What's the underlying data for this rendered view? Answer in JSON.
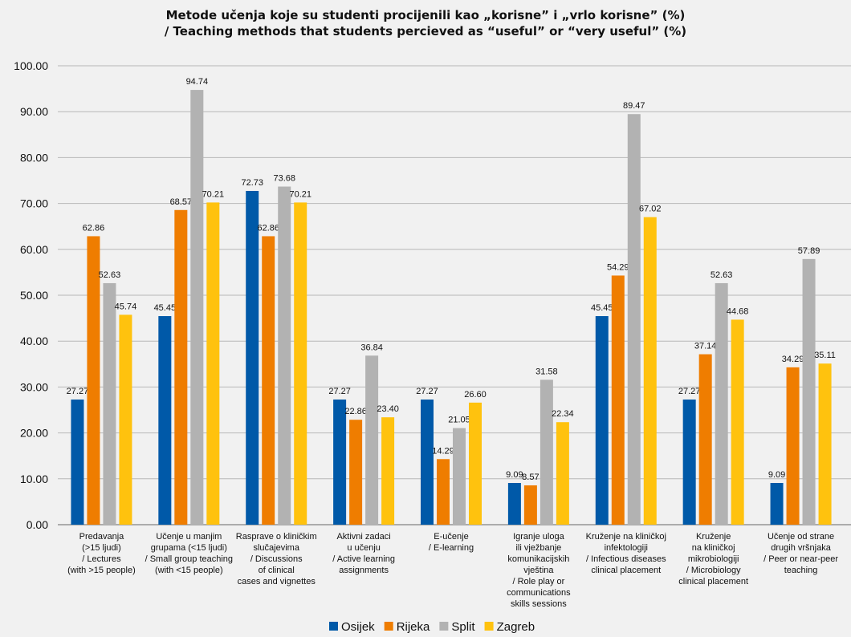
{
  "chart_data": {
    "type": "bar",
    "title_lines": [
      "Metode učenja koje su studenti procijenili kao „korisne” i „vrlo korisne” (%)",
      "/ Teaching methods that students percieved as “useful” or “very useful” (%)"
    ],
    "ylim": [
      0,
      100
    ],
    "yticks": [
      "0.00",
      "10.00",
      "20.00",
      "30.00",
      "40.00",
      "50.00",
      "60.00",
      "70.00",
      "80.00",
      "90.00",
      "100.00"
    ],
    "grid": true,
    "legend_position": "bottom",
    "categories": [
      [
        "Predavanja",
        "(>15 ljudi)",
        "/ Lectures",
        "(with >15 people)"
      ],
      [
        "Učenje u manjim",
        "grupama (<15 ljudi)",
        "/ Small group teaching",
        "(with <15 people)"
      ],
      [
        "Rasprave o kliničkim",
        "slučajevima",
        "/ Discussions",
        "of clinical",
        "cases and vignettes"
      ],
      [
        "Aktivni zadaci",
        "u učenju",
        "/ Active learning",
        "assignments"
      ],
      [
        "E-učenje",
        "/ E-learning"
      ],
      [
        "Igranje uloga",
        "ili vježbanje",
        "komunikacijskih",
        "vještina",
        "/ Role play or",
        "communications",
        "skills sessions"
      ],
      [
        "Kruženje na kliničkoj",
        "infektologiji",
        "/ Infectious diseases",
        "clinical placement"
      ],
      [
        "Kruženje",
        "na kliničkoj",
        "mikrobiologiji",
        "/ Microbiology",
        "clinical placement"
      ],
      [
        "Učenje od strane",
        "drugih vršnjaka",
        "/ Peer or near-peer",
        "teaching"
      ]
    ],
    "series": [
      {
        "name": "Osijek",
        "color": "#0059a8",
        "values": [
          27.27,
          45.45,
          72.73,
          27.27,
          27.27,
          9.09,
          45.45,
          27.27,
          9.09
        ],
        "labels": [
          "27.27",
          "45.45",
          "72.73",
          "27.27",
          "27.27",
          "9.09",
          "45.45",
          "27.27",
          "9.09"
        ]
      },
      {
        "name": "Rijeka",
        "color": "#ef7d00",
        "values": [
          62.86,
          68.57,
          62.86,
          22.86,
          14.29,
          8.57,
          54.29,
          37.14,
          34.29
        ],
        "labels": [
          "62.86",
          "68.57",
          "62.86",
          "22.86",
          "14.29",
          "8.57",
          "54.29",
          "37.14",
          "34.29"
        ]
      },
      {
        "name": "Split",
        "color": "#b2b2b2",
        "values": [
          52.63,
          94.74,
          73.68,
          36.84,
          21.05,
          31.58,
          89.47,
          52.63,
          57.89
        ],
        "labels": [
          "52.63",
          "94.74",
          "73.68",
          "36.84",
          "21.05",
          "31.58",
          "89.47",
          "52.63",
          "57.89"
        ]
      },
      {
        "name": "Zagreb",
        "color": "#ffc20e",
        "values": [
          45.74,
          70.21,
          70.21,
          23.4,
          26.6,
          22.34,
          67.02,
          44.68,
          35.11
        ],
        "labels": [
          "45.74",
          "70.21",
          "70.21",
          "23.40",
          "26.60",
          "22.34",
          "67.02",
          "44.68",
          "35.11"
        ]
      }
    ]
  }
}
